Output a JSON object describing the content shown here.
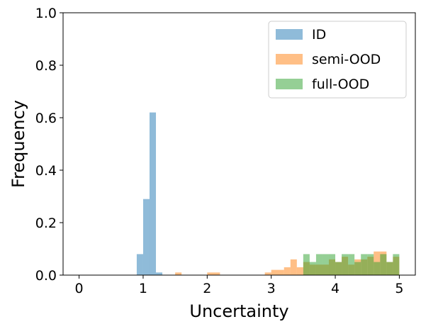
{
  "chart_data": {
    "type": "bar",
    "subtype": "overlapping-histogram",
    "xlabel": "Uncertainty",
    "ylabel": "Frequency",
    "xlim": [
      -0.25,
      5.25
    ],
    "ylim": [
      0,
      1.0
    ],
    "bin_width": 0.1,
    "x_ticks": [
      0,
      1,
      2,
      3,
      4,
      5
    ],
    "y_ticks": [
      0.0,
      0.2,
      0.4,
      0.6,
      0.8,
      1.0
    ],
    "x_tick_labels": [
      "0",
      "1",
      "2",
      "3",
      "4",
      "5"
    ],
    "y_tick_labels": [
      "0.0",
      "0.2",
      "0.4",
      "0.6",
      "0.8",
      "1.0"
    ],
    "legend_position": "top-right",
    "grid": false,
    "series": [
      {
        "name": "ID",
        "color": "#1f77b4",
        "alpha": 0.5,
        "bins": [
          {
            "x0": 0.9,
            "x1": 1.0,
            "y": 0.08
          },
          {
            "x0": 1.0,
            "x1": 1.1,
            "y": 0.29
          },
          {
            "x0": 1.1,
            "x1": 1.2,
            "y": 0.62
          },
          {
            "x0": 1.2,
            "x1": 1.3,
            "y": 0.01
          }
        ]
      },
      {
        "name": "semi-OOD",
        "color": "#ff7f0e",
        "alpha": 0.5,
        "bins": [
          {
            "x0": 1.5,
            "x1": 1.6,
            "y": 0.01
          },
          {
            "x0": 2.0,
            "x1": 2.2,
            "y": 0.01
          },
          {
            "x0": 2.9,
            "x1": 3.0,
            "y": 0.01
          },
          {
            "x0": 3.0,
            "x1": 3.2,
            "y": 0.02
          },
          {
            "x0": 3.2,
            "x1": 3.3,
            "y": 0.03
          },
          {
            "x0": 3.3,
            "x1": 3.4,
            "y": 0.06
          },
          {
            "x0": 3.4,
            "x1": 3.5,
            "y": 0.03
          },
          {
            "x0": 3.5,
            "x1": 3.6,
            "y": 0.05
          },
          {
            "x0": 3.6,
            "x1": 3.7,
            "y": 0.04
          },
          {
            "x0": 3.7,
            "x1": 3.8,
            "y": 0.04
          },
          {
            "x0": 3.8,
            "x1": 3.9,
            "y": 0.04
          },
          {
            "x0": 3.9,
            "x1": 4.0,
            "y": 0.06
          },
          {
            "x0": 4.0,
            "x1": 4.1,
            "y": 0.05
          },
          {
            "x0": 4.1,
            "x1": 4.2,
            "y": 0.07
          },
          {
            "x0": 4.2,
            "x1": 4.3,
            "y": 0.04
          },
          {
            "x0": 4.3,
            "x1": 4.4,
            "y": 0.06
          },
          {
            "x0": 4.4,
            "x1": 4.5,
            "y": 0.06
          },
          {
            "x0": 4.5,
            "x1": 4.6,
            "y": 0.07
          },
          {
            "x0": 4.6,
            "x1": 4.7,
            "y": 0.09
          },
          {
            "x0": 4.7,
            "x1": 4.8,
            "y": 0.09
          },
          {
            "x0": 4.8,
            "x1": 4.9,
            "y": 0.05
          },
          {
            "x0": 4.9,
            "x1": 5.0,
            "y": 0.07
          }
        ]
      },
      {
        "name": "full-OOD",
        "color": "#2ca02c",
        "alpha": 0.5,
        "bins": [
          {
            "x0": 3.5,
            "x1": 3.6,
            "y": 0.08
          },
          {
            "x0": 3.6,
            "x1": 3.7,
            "y": 0.05
          },
          {
            "x0": 3.7,
            "x1": 3.8,
            "y": 0.08
          },
          {
            "x0": 3.8,
            "x1": 3.9,
            "y": 0.08
          },
          {
            "x0": 3.9,
            "x1": 4.0,
            "y": 0.08
          },
          {
            "x0": 4.0,
            "x1": 4.1,
            "y": 0.05
          },
          {
            "x0": 4.1,
            "x1": 4.2,
            "y": 0.08
          },
          {
            "x0": 4.2,
            "x1": 4.3,
            "y": 0.08
          },
          {
            "x0": 4.3,
            "x1": 4.4,
            "y": 0.05
          },
          {
            "x0": 4.4,
            "x1": 4.5,
            "y": 0.08
          },
          {
            "x0": 4.5,
            "x1": 4.6,
            "y": 0.08
          },
          {
            "x0": 4.6,
            "x1": 4.7,
            "y": 0.05
          },
          {
            "x0": 4.7,
            "x1": 4.8,
            "y": 0.08
          },
          {
            "x0": 4.8,
            "x1": 4.9,
            "y": 0.05
          },
          {
            "x0": 4.9,
            "x1": 5.0,
            "y": 0.08
          }
        ]
      }
    ]
  }
}
